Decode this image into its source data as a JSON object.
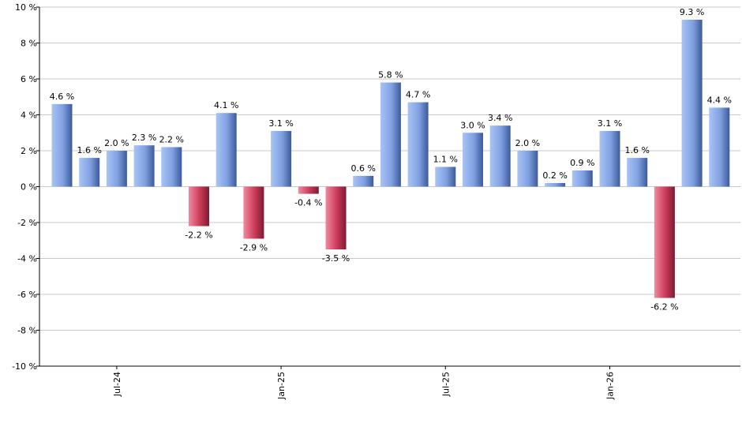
{
  "chart_data": {
    "type": "bar",
    "title": "",
    "xlabel": "",
    "ylabel": "",
    "ylim": [
      -10,
      10
    ],
    "yticks": [
      10,
      8,
      6,
      4,
      2,
      0,
      -2,
      -4,
      -6,
      -8,
      -10
    ],
    "ytick_labels": [
      "10 %",
      "8 %",
      "6 %",
      "4 %",
      "2 %",
      "0 %",
      "-2 %",
      "-4 %",
      "-6 %",
      "-8 %",
      "-10 %"
    ],
    "grid": true,
    "legend": "none",
    "values": [
      4.6,
      1.6,
      2.0,
      2.3,
      2.2,
      -2.2,
      4.1,
      -2.9,
      3.1,
      -0.4,
      -3.5,
      0.6,
      5.8,
      4.7,
      1.1,
      3.0,
      3.4,
      2.0,
      0.2,
      0.9,
      3.1,
      1.6,
      -6.2,
      9.3,
      4.4
    ],
    "value_labels": [
      "4.6 %",
      "1.6 %",
      "2.0 %",
      "2.3 %",
      "2.2 %",
      "-2.2 %",
      "4.1 %",
      "-2.9 %",
      "3.1 %",
      "-0.4 %",
      "-3.5 %",
      "0.6 %",
      "5.8 %",
      "4.7 %",
      "1.1 %",
      "3.0 %",
      "3.4 %",
      "2.0 %",
      "0.2 %",
      "0.9 %",
      "3.1 %",
      "1.6 %",
      "-6.2 %",
      "9.3 %",
      "4.4 %"
    ],
    "xtick_labels": [
      {
        "bar_index": 2,
        "label": "Jul-24"
      },
      {
        "bar_index": 8,
        "label": "Jan-25"
      },
      {
        "bar_index": 14,
        "label": "Jul-25"
      },
      {
        "bar_index": 20,
        "label": "Jan-26"
      }
    ],
    "colors": {
      "positive_light": "#a9c4f5",
      "positive_mid": "#7f9fe0",
      "positive_dark": "#3d5a9a",
      "negative_light": "#f08aa0",
      "negative_mid": "#cc3a58",
      "negative_dark": "#7a1c32",
      "grid": "#c8c8c8",
      "axis": "#000000"
    }
  }
}
